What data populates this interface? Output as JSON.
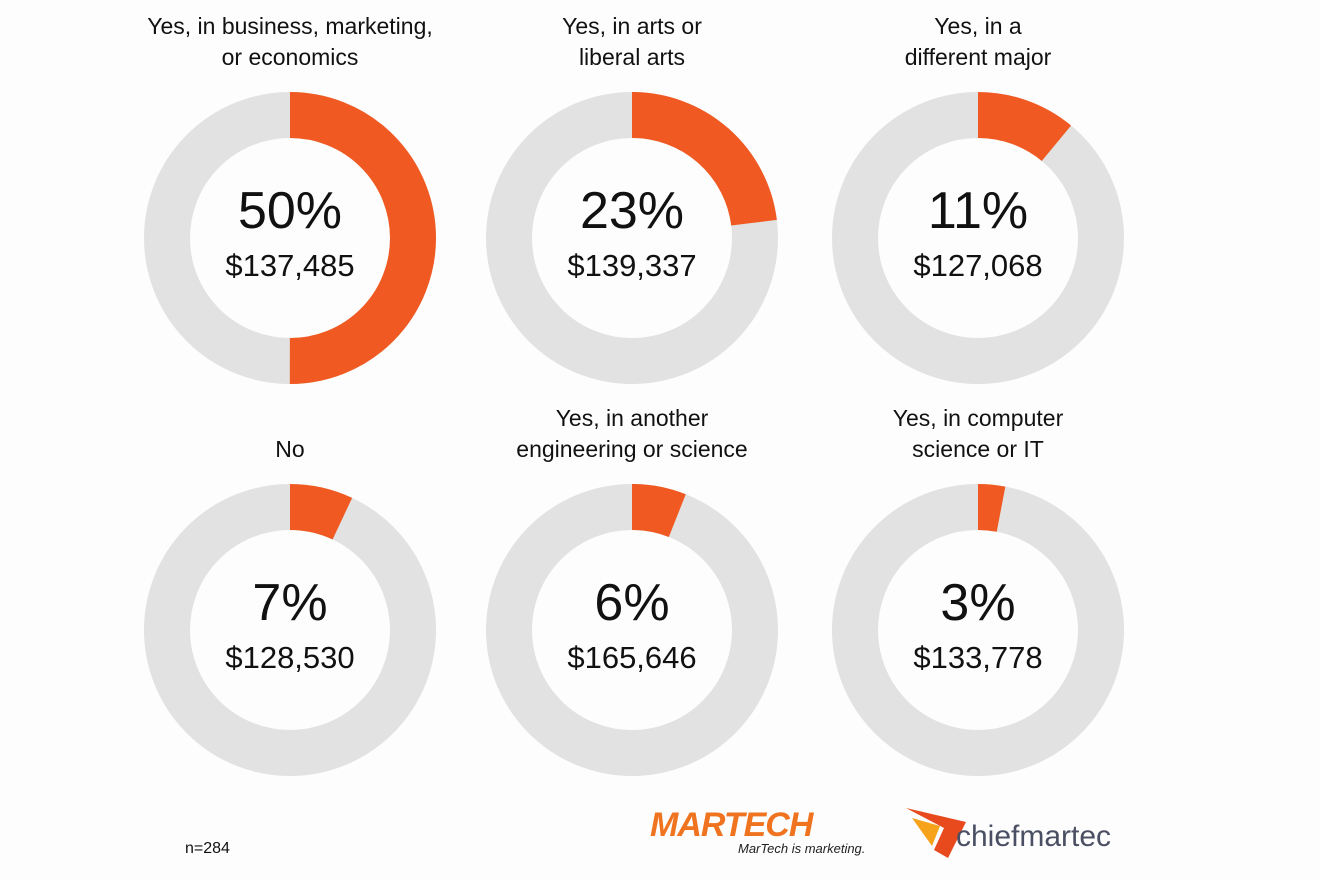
{
  "chart_data": [
    {
      "type": "donut",
      "title": [
        "Yes, in business, marketing,",
        "or economics"
      ],
      "values": [
        50
      ],
      "value_labels": [
        "50%"
      ],
      "salary": 137485,
      "salary_label": "$137,485",
      "color": "#f05a22",
      "track_color": "#e2e2e2"
    },
    {
      "type": "donut",
      "title": [
        "Yes, in arts or",
        "liberal arts"
      ],
      "values": [
        23
      ],
      "value_labels": [
        "23%"
      ],
      "salary": 139337,
      "salary_label": "$139,337",
      "color": "#f05a22",
      "track_color": "#e2e2e2"
    },
    {
      "type": "donut",
      "title": [
        "Yes, in a",
        "different major"
      ],
      "values": [
        11
      ],
      "value_labels": [
        "11%"
      ],
      "salary": 127068,
      "salary_label": "$127,068",
      "color": "#f05a22",
      "track_color": "#e2e2e2"
    },
    {
      "type": "donut",
      "title": [
        "No"
      ],
      "values": [
        7
      ],
      "value_labels": [
        "7%"
      ],
      "salary": 128530,
      "salary_label": "$128,530",
      "color": "#f05a22",
      "track_color": "#e2e2e2"
    },
    {
      "type": "donut",
      "title": [
        "Yes, in another",
        "engineering or science"
      ],
      "values": [
        6
      ],
      "value_labels": [
        "6%"
      ],
      "salary": 165646,
      "salary_label": "$165,646",
      "color": "#f05a22",
      "track_color": "#e2e2e2"
    },
    {
      "type": "donut",
      "title": [
        "Yes, in computer",
        "science or IT"
      ],
      "values": [
        3
      ],
      "value_labels": [
        "3%"
      ],
      "salary": 133778,
      "salary_label": "$133,778",
      "color": "#f05a22",
      "track_color": "#e2e2e2"
    }
  ],
  "footer": {
    "note": "n=284",
    "logo_1": "MARTECH",
    "logo_1_tagline": "MarTech is marketing.",
    "logo_2": "chiefmartec"
  }
}
